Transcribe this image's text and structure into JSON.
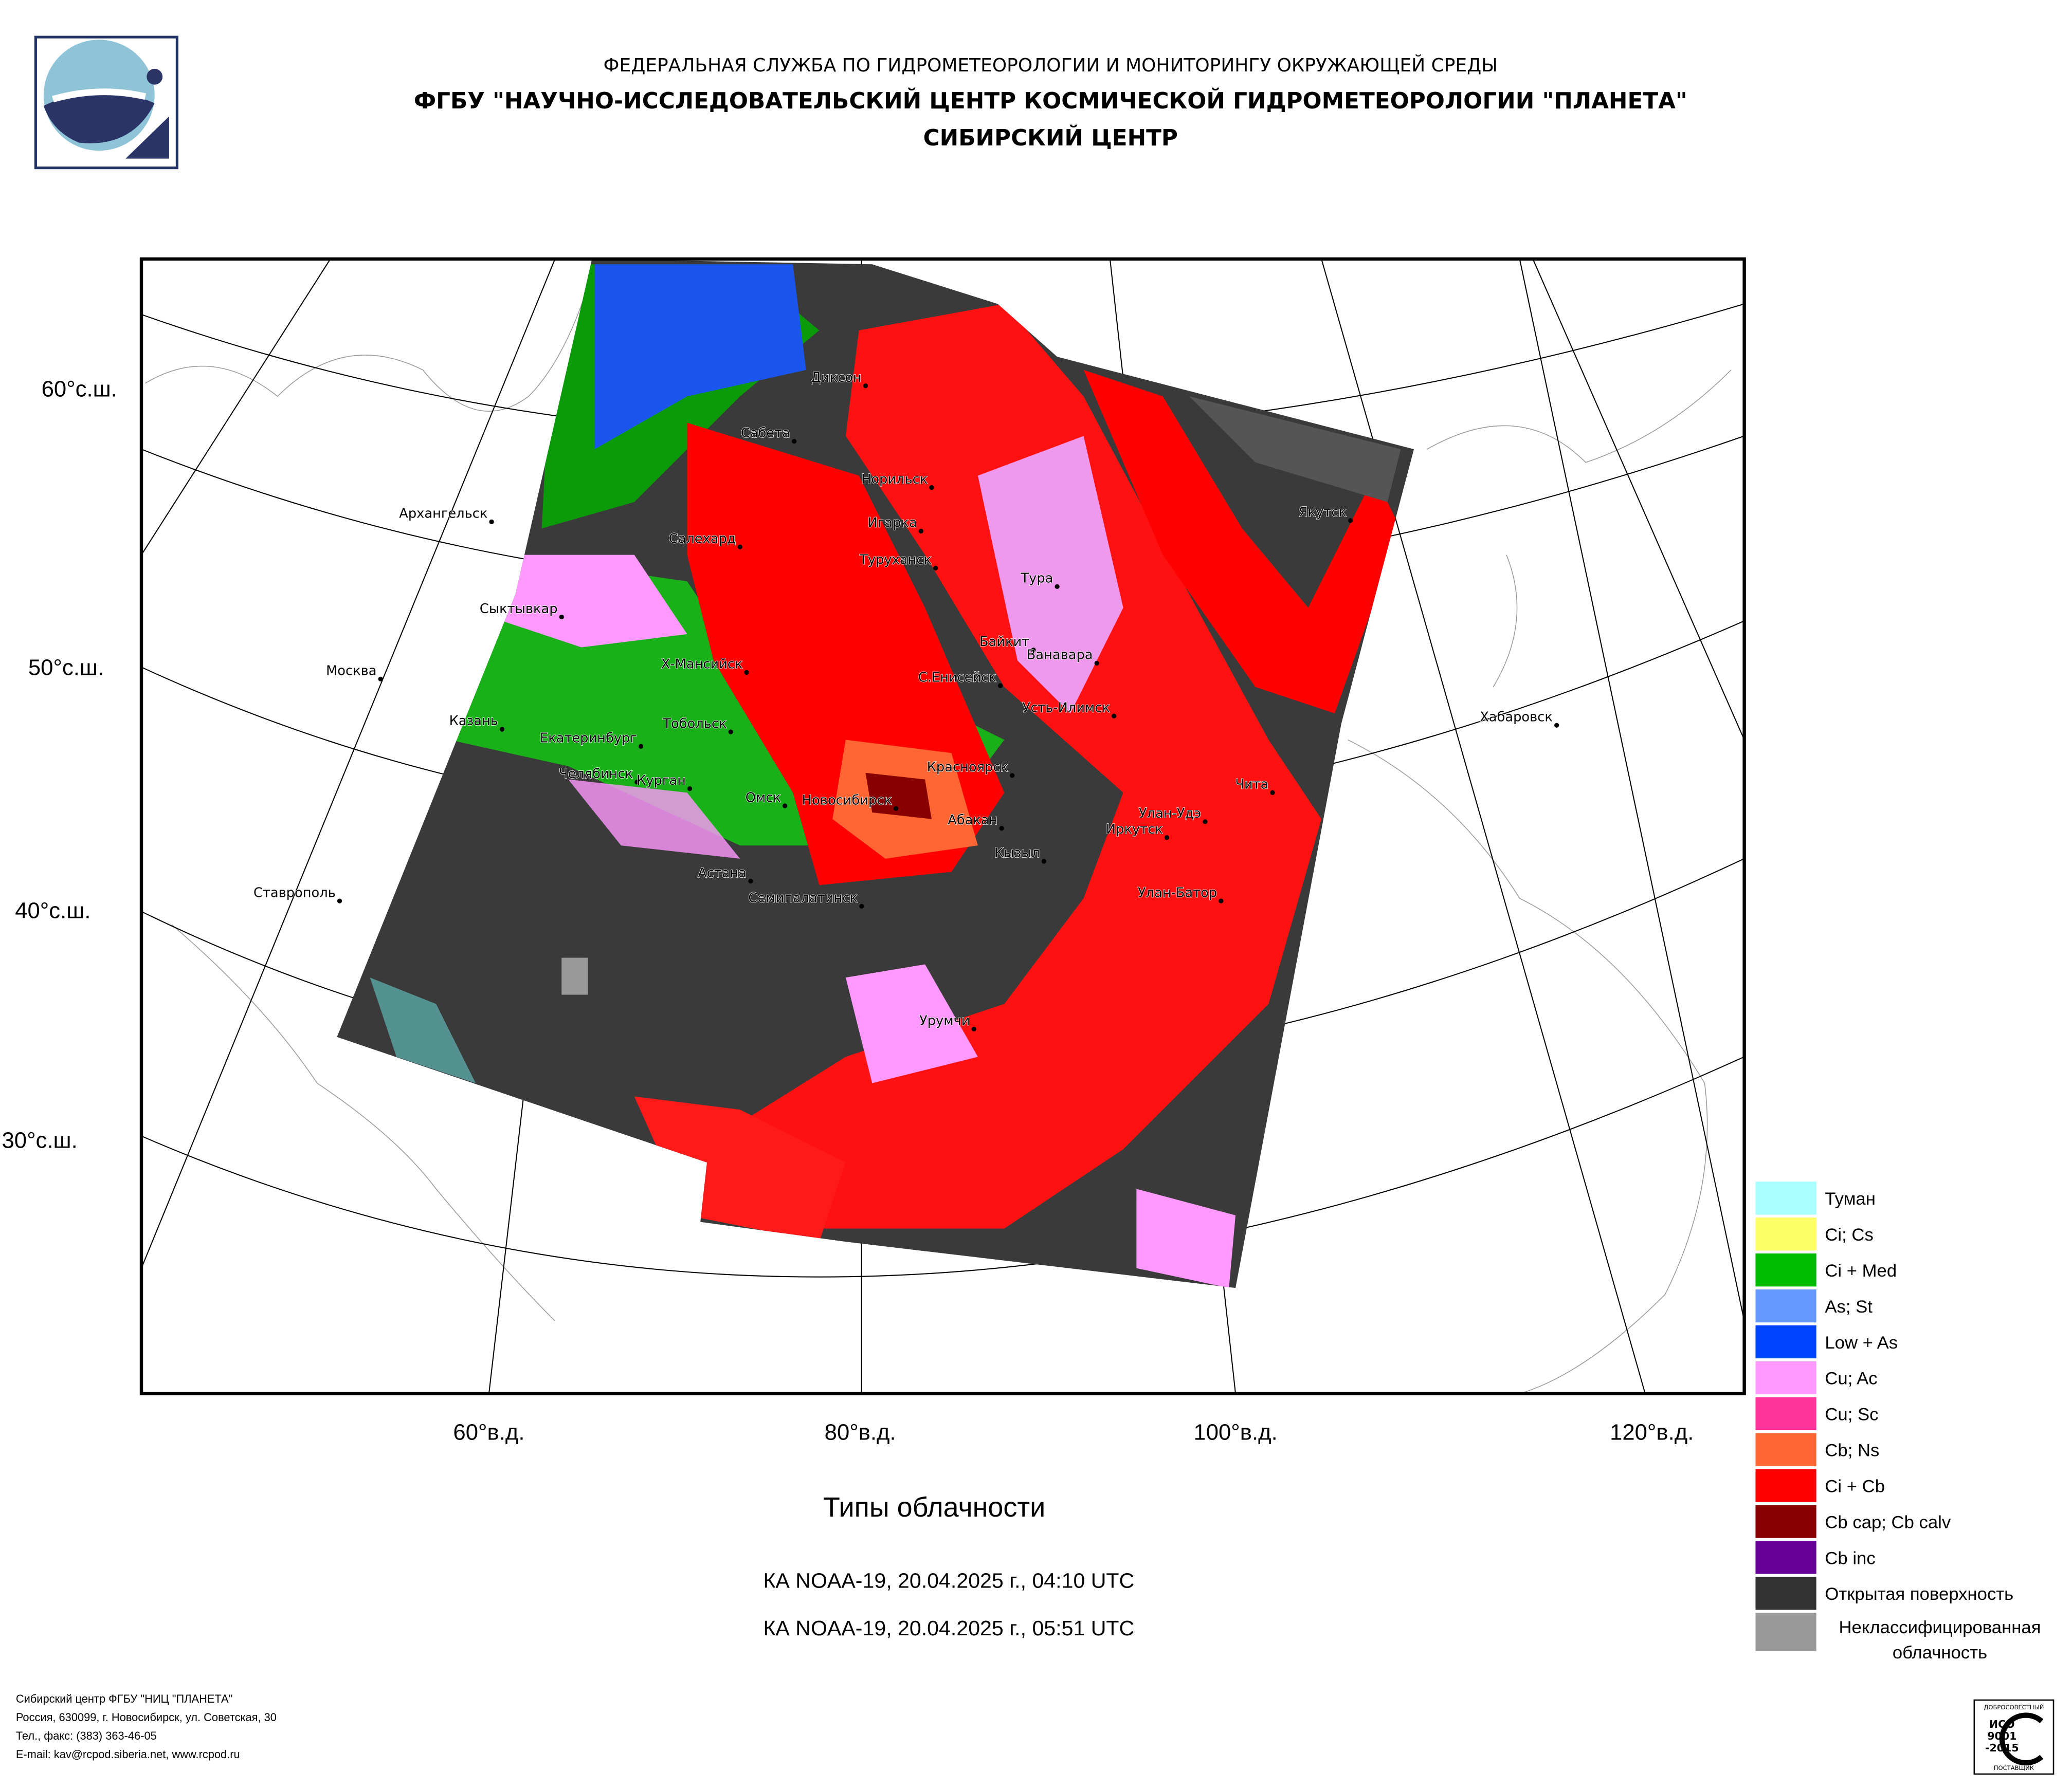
{
  "header": {
    "agency": "ФЕДЕРАЛЬНАЯ СЛУЖБА ПО ГИДРОМЕТЕОРОЛОГИИ И МОНИТОРИНГУ ОКРУЖАЮЩЕЙ СРЕДЫ",
    "institute": "ФГБУ \"НАУЧНО-ИССЛЕДОВАТЕЛЬСКИЙ ЦЕНТР КОСМИЧЕСКОЙ ГИДРОМЕТЕОРОЛОГИИ \"ПЛАНЕТА\"",
    "center": "СИБИРСКИЙ ЦЕНТР"
  },
  "map": {
    "lat_labels": [
      "60°с.ш.",
      "50°с.ш.",
      "40°с.ш.",
      "30°с.ш."
    ],
    "lon_labels": [
      "60°в.д.",
      "80°в.д.",
      "100°в.д.",
      "120°в.д."
    ],
    "cities": [
      "Диксон",
      "Сабета",
      "Норильск",
      "Игарка",
      "Салехард",
      "Туруханск",
      "Тура",
      "Якутск",
      "Архангельск",
      "Сыктывкар",
      "Байкит",
      "Ванавара",
      "Х-Мансийск",
      "С.Енисейск",
      "Москва",
      "Усть-Илимск",
      "Хабаровск",
      "Казань",
      "Тобольск",
      "Екатеринбург",
      "Красноярск",
      "Чита",
      "Челябинск",
      "Курган",
      "Омск",
      "Новосибирск",
      "Абакан",
      "Улан-Удэ",
      "Иркутск",
      "Кызыл",
      "Астана",
      "Семипалатинск",
      "Улан-Батор",
      "Ставрополь",
      "Урумчи"
    ]
  },
  "legend": {
    "items": [
      {
        "label": "Туман",
        "color": "#a8ffff"
      },
      {
        "label": "Ci; Cs",
        "color": "#ffff66"
      },
      {
        "label": "Ci + Med",
        "color": "#00bb00"
      },
      {
        "label": "As; St",
        "color": "#6699ff"
      },
      {
        "label": "Low + As",
        "color": "#0044ff"
      },
      {
        "label": "Cu; Ac",
        "color": "#ff99ff"
      },
      {
        "label": "Cu; Sc",
        "color": "#ff3399"
      },
      {
        "label": "Cb; Ns",
        "color": "#ff6633"
      },
      {
        "label": "Ci + Cb",
        "color": "#ff0000"
      },
      {
        "label": "Cb cap; Cb calv",
        "color": "#880000"
      },
      {
        "label": "Cb inc",
        "color": "#660099"
      },
      {
        "label": "Открытая поверхность",
        "color": "#333333"
      },
      {
        "label": [
          "Неклассифицированная",
          "облачность"
        ],
        "color": "#999999"
      }
    ]
  },
  "title": "Типы облачности",
  "passes": [
    "КА NOAA-19, 20.04.2025 г., 04:10 UTC",
    "КА NOAA-19, 20.04.2025 г., 05:51 UTC"
  ],
  "footer": [
    "Сибирский центр ФГБУ \"НИЦ \"ПЛАНЕТА\"",
    "Россия, 630099, г. Новосибирск, ул. Советская, 30",
    "Тел., факс: (383) 363-46-05",
    "E-mail: kav@rcpod.siberia.net, www.rcpod.ru"
  ],
  "badge": {
    "top": "ДОБРОСОВЕСТНЫЙ",
    "iso": "ИСО",
    "number": "9001",
    "year": "-2015",
    "bottom": "ПОСТАВЩИК"
  }
}
